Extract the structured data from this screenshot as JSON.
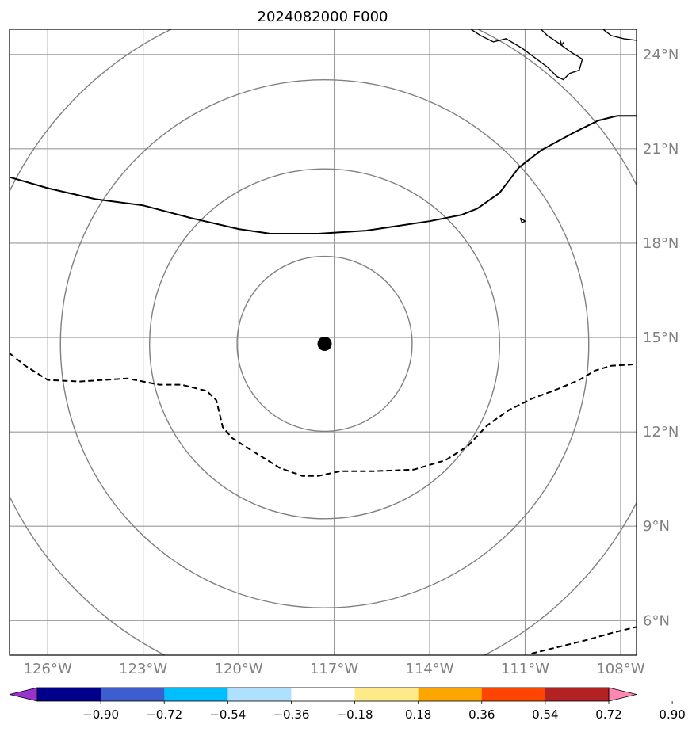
{
  "title": "2024082000 F000",
  "map": {
    "lon_range": [
      -127.2,
      -107.5
    ],
    "lat_range": [
      4.9,
      24.8
    ],
    "center": {
      "lon": -117.3,
      "lat": 14.8
    },
    "lat_ticks": [
      {
        "value": 24,
        "label": "24°N"
      },
      {
        "value": 21,
        "label": "21°N"
      },
      {
        "value": 18,
        "label": "18°N"
      },
      {
        "value": 15,
        "label": "15°N"
      },
      {
        "value": 12,
        "label": "12°N"
      },
      {
        "value": 9,
        "label": "9°N"
      },
      {
        "value": 6,
        "label": "6°N"
      }
    ],
    "lon_ticks": [
      {
        "value": -126,
        "label": "126°W"
      },
      {
        "value": -123,
        "label": "123°W"
      },
      {
        "value": -120,
        "label": "120°W"
      },
      {
        "value": -117,
        "label": "117°W"
      },
      {
        "value": -114,
        "label": "114°W"
      },
      {
        "value": -111,
        "label": "111°W"
      },
      {
        "value": -108,
        "label": "108°W"
      }
    ],
    "range_rings_deg": [
      2.75,
      5.5,
      8.3,
      11.0
    ],
    "colors": {
      "grid": "#999999",
      "rings": "#808080",
      "coast": "#000000",
      "contour": "#000000",
      "center_marker": "#000000"
    },
    "solid_contour": [
      [
        -127.2,
        20.1
      ],
      [
        -126.0,
        19.75
      ],
      [
        -124.5,
        19.4
      ],
      [
        -123.0,
        19.2
      ],
      [
        -121.5,
        18.8
      ],
      [
        -120.0,
        18.45
      ],
      [
        -119.0,
        18.3
      ],
      [
        -117.5,
        18.3
      ],
      [
        -116.0,
        18.4
      ],
      [
        -114.0,
        18.7
      ],
      [
        -113.0,
        18.9
      ],
      [
        -112.5,
        19.1
      ],
      [
        -111.8,
        19.6
      ],
      [
        -111.2,
        20.4
      ],
      [
        -110.5,
        20.95
      ],
      [
        -109.5,
        21.5
      ],
      [
        -108.7,
        21.9
      ],
      [
        -108.1,
        22.05
      ],
      [
        -107.5,
        22.05
      ]
    ],
    "dashed_contour_west": [
      [
        -127.2,
        14.5
      ],
      [
        -126.7,
        14.1
      ],
      [
        -126.0,
        13.65
      ],
      [
        -125.0,
        13.6
      ],
      [
        -123.5,
        13.7
      ],
      [
        -122.5,
        13.5
      ],
      [
        -121.8,
        13.5
      ],
      [
        -121.0,
        13.3
      ],
      [
        -120.7,
        13.0
      ],
      [
        -120.5,
        12.15
      ],
      [
        -120.2,
        11.8
      ],
      [
        -119.5,
        11.35
      ],
      [
        -118.7,
        10.85
      ],
      [
        -118.0,
        10.6
      ],
      [
        -117.5,
        10.6
      ],
      [
        -116.8,
        10.75
      ],
      [
        -115.8,
        10.75
      ],
      [
        -114.5,
        10.8
      ],
      [
        -113.5,
        11.1
      ],
      [
        -112.8,
        11.55
      ],
      [
        -112.2,
        12.2
      ],
      [
        -111.5,
        12.7
      ],
      [
        -110.8,
        13.05
      ],
      [
        -110.0,
        13.35
      ],
      [
        -109.3,
        13.65
      ],
      [
        -108.8,
        13.95
      ],
      [
        -108.3,
        14.1
      ],
      [
        -107.5,
        14.15
      ]
    ],
    "dashed_contour_southeast": [
      [
        -110.8,
        4.95
      ],
      [
        -110.0,
        5.15
      ],
      [
        -109.0,
        5.4
      ],
      [
        -108.3,
        5.6
      ],
      [
        -107.5,
        5.8
      ]
    ],
    "coastlines": [
      [
        [
          -112.7,
          24.8
        ],
        [
          -112.4,
          24.6
        ],
        [
          -112.0,
          24.4
        ],
        [
          -111.6,
          24.5
        ],
        [
          -111.1,
          24.2
        ],
        [
          -110.7,
          23.9
        ],
        [
          -110.3,
          23.6
        ],
        [
          -110.0,
          23.3
        ],
        [
          -109.8,
          23.2
        ],
        [
          -109.6,
          23.4
        ],
        [
          -109.3,
          23.5
        ],
        [
          -109.2,
          23.85
        ],
        [
          -109.6,
          24.1
        ],
        [
          -110.0,
          24.4
        ],
        [
          -110.3,
          24.6
        ],
        [
          -110.5,
          24.8
        ]
      ],
      [
        [
          -109.9,
          24.45
        ],
        [
          -109.85,
          24.3
        ],
        [
          -109.78,
          24.4
        ]
      ],
      [
        [
          -108.55,
          24.8
        ],
        [
          -108.3,
          24.6
        ],
        [
          -107.9,
          24.5
        ],
        [
          -107.5,
          24.45
        ]
      ],
      [
        [
          -111.15,
          18.8
        ],
        [
          -111.0,
          18.7
        ],
        [
          -111.1,
          18.65
        ],
        [
          -111.15,
          18.8
        ]
      ]
    ]
  },
  "colorbar": {
    "colors": [
      "#9932cc",
      "#00008b",
      "#3c5ecf",
      "#00bfff",
      "#b0e0ff",
      "#ffffff",
      "#ffea8a",
      "#ffa500",
      "#ff4500",
      "#b22222",
      "#ff87b2"
    ],
    "tick_labels": [
      "−0.90",
      "−0.72",
      "−0.54",
      "−0.36",
      "−0.18",
      "0.18",
      "0.36",
      "0.54",
      "0.72",
      "0.90"
    ]
  }
}
